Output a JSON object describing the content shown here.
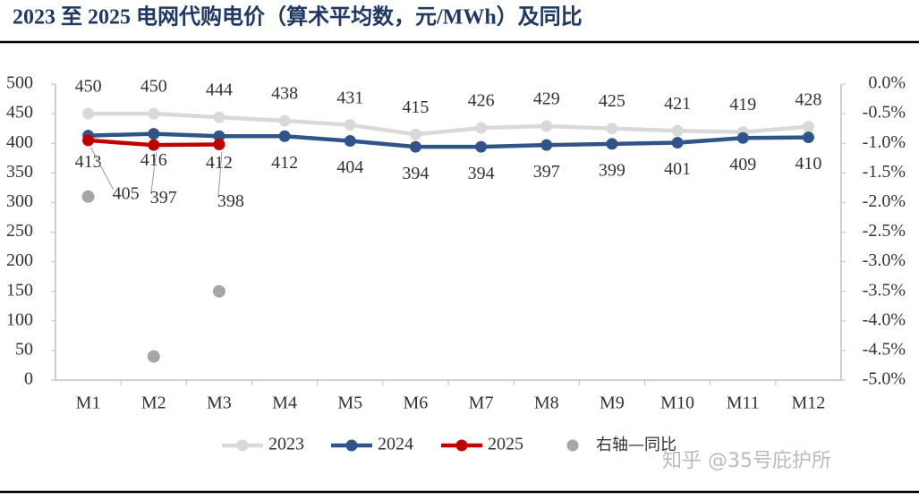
{
  "chart_data": {
    "type": "line",
    "title": "2023 至 2025 电网代购电价（算术平均数，元/MWh）及同比",
    "categories": [
      "M1",
      "M2",
      "M3",
      "M4",
      "M5",
      "M6",
      "M7",
      "M8",
      "M9",
      "M10",
      "M11",
      "M12"
    ],
    "series": [
      {
        "name": "2023",
        "color": "#d9d9d9",
        "values": [
          450,
          450,
          444,
          438,
          431,
          415,
          426,
          429,
          425,
          421,
          419,
          428
        ]
      },
      {
        "name": "2024",
        "color": "#2f5588",
        "values": [
          413,
          416,
          412,
          412,
          404,
          394,
          394,
          397,
          399,
          401,
          409,
          410
        ]
      },
      {
        "name": "2025",
        "color": "#c00000",
        "values": [
          405,
          397,
          398,
          null,
          null,
          null,
          null,
          null,
          null,
          null,
          null,
          null
        ]
      },
      {
        "name": "右轴—同比",
        "color": "#a6a6a6",
        "type": "scatter",
        "axis": "y2",
        "values": [
          -1.9,
          -4.6,
          -3.5,
          null,
          null,
          null,
          null,
          null,
          null,
          null,
          null,
          null
        ]
      }
    ],
    "ylim": [
      0,
      500
    ],
    "yticks": [
      0,
      50,
      100,
      150,
      200,
      250,
      300,
      350,
      400,
      450,
      500
    ],
    "y2lim": [
      -5,
      0
    ],
    "y2ticks": [
      {
        "value": 0,
        "label": "0.0%"
      },
      {
        "value": -0.5,
        "label": "-0.5%"
      },
      {
        "value": -1,
        "label": "-1.0%"
      },
      {
        "value": -1.5,
        "label": "-1.5%"
      },
      {
        "value": -2,
        "label": "-2.0%"
      },
      {
        "value": -2.5,
        "label": "-2.5%"
      },
      {
        "value": -3,
        "label": "-3.0%"
      },
      {
        "value": -3.5,
        "label": "-3.5%"
      },
      {
        "value": -4,
        "label": "-4.0%"
      },
      {
        "value": -4.5,
        "label": "-4.5%"
      },
      {
        "value": -5,
        "label": "-5.0%"
      }
    ],
    "watermark": "知乎 @35号庇护所"
  }
}
